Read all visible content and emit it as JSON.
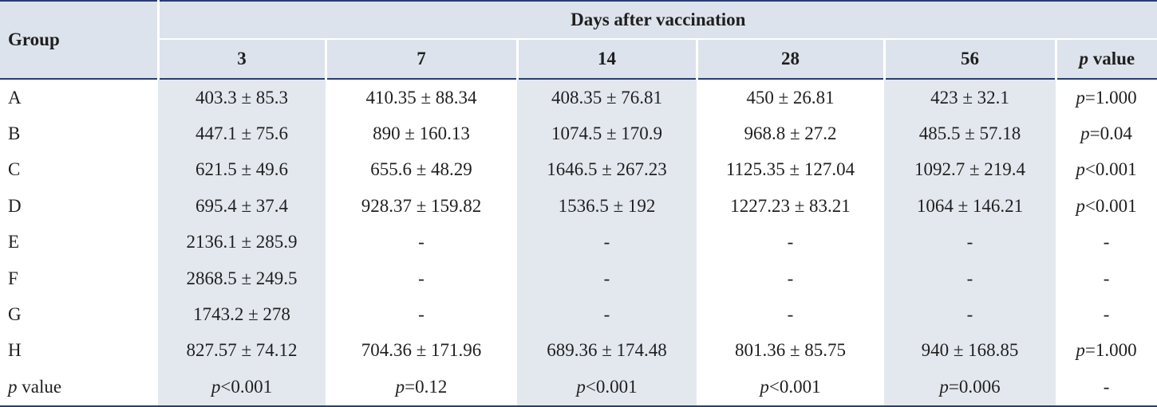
{
  "table": {
    "group_header": "Group",
    "days_header": "Days after vaccination",
    "day_columns": [
      "3",
      "7",
      "14",
      "28",
      "56"
    ],
    "pvalue_header_p": "p",
    "pvalue_header_rest": " value",
    "rows": [
      {
        "group": "A",
        "cells": [
          "403.3 ± 85.3",
          "410.35 ± 88.34",
          "408.35 ± 76.81",
          "450 ± 26.81",
          "423 ± 32.1"
        ],
        "p_prefix": "p",
        "p_rest": "=1.000"
      },
      {
        "group": "B",
        "cells": [
          "447.1 ± 75.6",
          "890 ± 160.13",
          "1074.5 ± 170.9",
          "968.8 ± 27.2",
          "485.5 ± 57.18"
        ],
        "p_prefix": "p",
        "p_rest": "=0.04"
      },
      {
        "group": "C",
        "cells": [
          "621.5 ± 49.6",
          "655.6 ± 48.29",
          "1646.5 ± 267.23",
          "1125.35 ± 127.04",
          "1092.7 ± 219.4"
        ],
        "p_prefix": "p",
        "p_rest": "<0.001"
      },
      {
        "group": "D",
        "cells": [
          "695.4 ± 37.4",
          "928.37 ± 159.82",
          "1536.5 ± 192",
          "1227.23 ± 83.21",
          "1064 ± 146.21"
        ],
        "p_prefix": "p",
        "p_rest": "<0.001"
      },
      {
        "group": "E",
        "cells": [
          "2136.1 ± 285.9",
          "-",
          "-",
          "-",
          "-"
        ],
        "p_prefix": "",
        "p_rest": "-"
      },
      {
        "group": "F",
        "cells": [
          "2868.5 ± 249.5",
          "-",
          "-",
          "-",
          "-"
        ],
        "p_prefix": "",
        "p_rest": "-"
      },
      {
        "group": "G",
        "cells": [
          "1743.2 ± 278",
          "-",
          "-",
          "-",
          "-"
        ],
        "p_prefix": "",
        "p_rest": "-"
      },
      {
        "group": "H",
        "cells": [
          "827.57 ± 74.12",
          "704.36 ± 171.96",
          "689.36 ± 174.48",
          "801.36 ± 85.75",
          "940 ± 168.85"
        ],
        "p_prefix": "p",
        "p_rest": "=1.000"
      }
    ],
    "pvalue_row": {
      "label_p": "p",
      "label_rest": " value",
      "cells": [
        {
          "p": "p",
          "rest": "<0.001"
        },
        {
          "p": "p",
          "rest": "=0.12"
        },
        {
          "p": "p",
          "rest": "<0.001"
        },
        {
          "p": "p",
          "rest": "<0.001"
        },
        {
          "p": "p",
          "rest": "=0.006"
        }
      ],
      "last": "-"
    }
  }
}
